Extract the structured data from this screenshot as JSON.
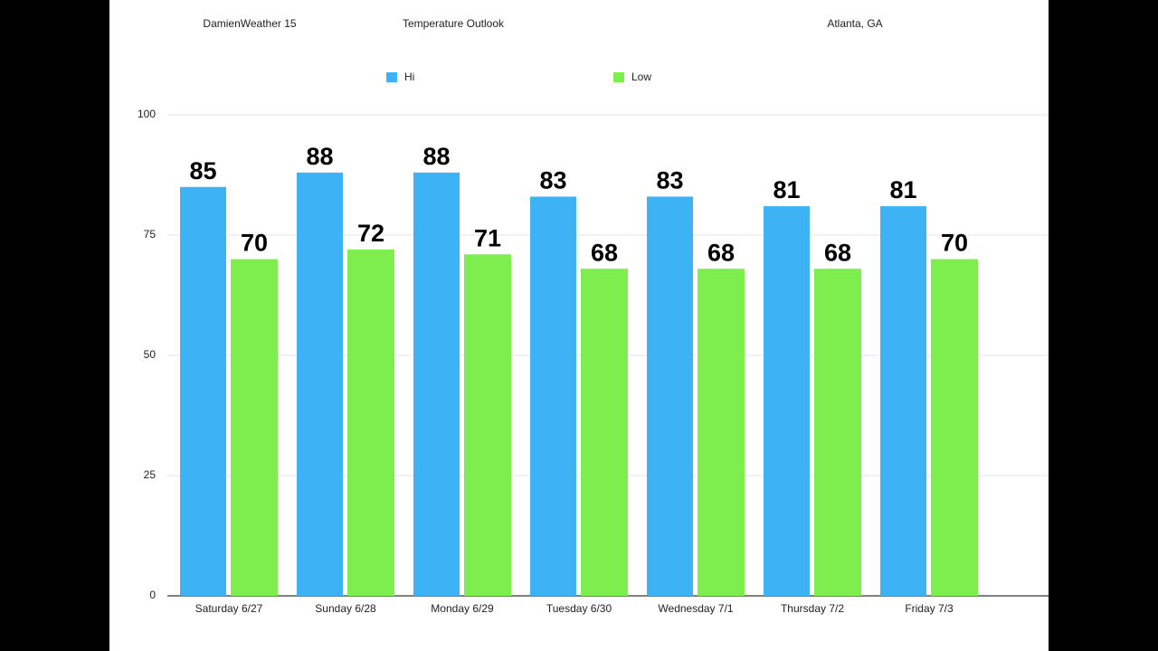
{
  "chart_data": {
    "type": "bar",
    "source": "DamienWeather 15",
    "title": "Temperature Outlook",
    "location": "Atlanta, GA",
    "categories": [
      "Saturday 6/27",
      "Sunday 6/28",
      "Monday 6/29",
      "Tuesday 6/30",
      "Wednesday 7/1",
      "Thursday 7/2",
      "Friday 7/3"
    ],
    "series": [
      {
        "name": "Hi",
        "color": "#3db2f5",
        "values": [
          85,
          88,
          88,
          83,
          83,
          81,
          81
        ]
      },
      {
        "name": "Low",
        "color": "#7eee4f",
        "values": [
          70,
          72,
          71,
          68,
          68,
          68,
          70
        ]
      }
    ],
    "ylim": [
      0,
      100
    ],
    "yticks": [
      0,
      25,
      50,
      75,
      100
    ],
    "grid": true,
    "legend": "top"
  }
}
